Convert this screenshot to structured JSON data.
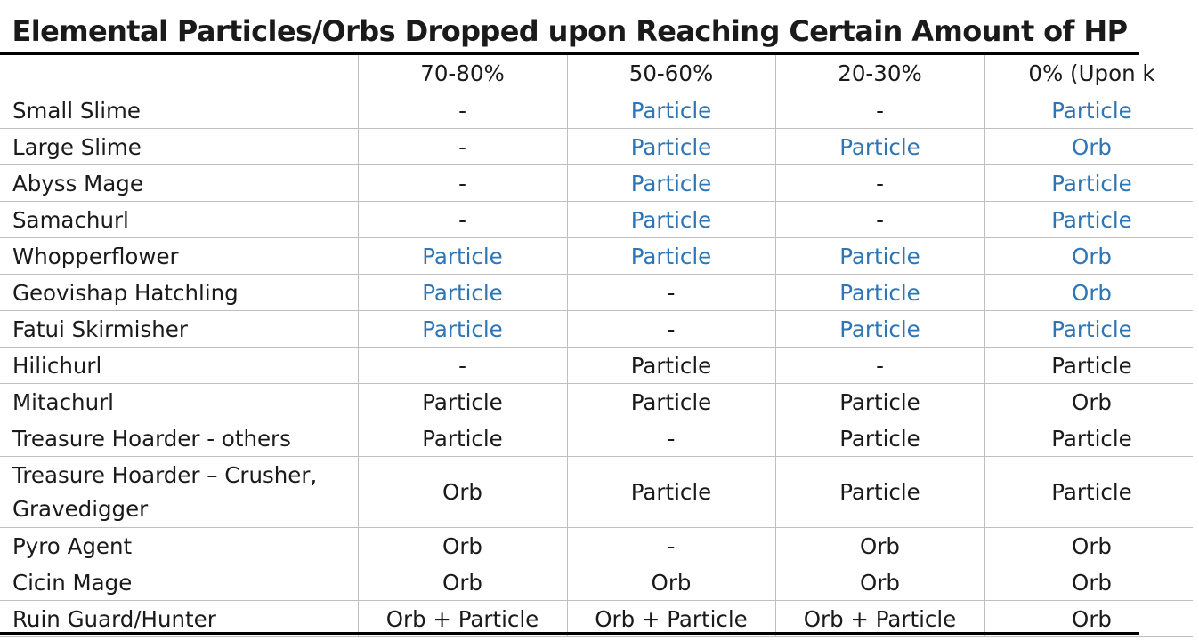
{
  "title": "Elemental Particles/Orbs Dropped upon Reaching Certain Amount of HP",
  "columns": [
    "",
    "70-80%",
    "50-60%",
    "20-30%",
    "0% (Upon k"
  ],
  "rows": [
    {
      "name": "Small Slime",
      "cells": [
        "-",
        "Particle",
        "-",
        "Particle"
      ],
      "blue": [
        false,
        true,
        false,
        true
      ]
    },
    {
      "name": "Large Slime",
      "cells": [
        "-",
        "Particle",
        "Particle",
        "Orb"
      ],
      "blue": [
        false,
        true,
        true,
        true
      ]
    },
    {
      "name": "Abyss Mage",
      "cells": [
        "-",
        "Particle",
        "-",
        "Particle"
      ],
      "blue": [
        false,
        true,
        false,
        true
      ]
    },
    {
      "name": "Samachurl",
      "cells": [
        "-",
        "Particle",
        "-",
        "Particle"
      ],
      "blue": [
        false,
        true,
        false,
        true
      ]
    },
    {
      "name": "Whopperflower",
      "cells": [
        "Particle",
        "Particle",
        "Particle",
        "Orb"
      ],
      "blue": [
        true,
        true,
        true,
        true
      ]
    },
    {
      "name": "Geovishap Hatchling",
      "cells": [
        "Particle",
        "-",
        "Particle",
        "Orb"
      ],
      "blue": [
        true,
        false,
        true,
        true
      ]
    },
    {
      "name": "Fatui Skirmisher",
      "cells": [
        "Particle",
        "-",
        "Particle",
        "Particle"
      ],
      "blue": [
        true,
        false,
        true,
        true
      ]
    },
    {
      "name": "Hilichurl",
      "cells": [
        "-",
        "Particle",
        "-",
        "Particle"
      ],
      "blue": [
        false,
        false,
        false,
        false
      ]
    },
    {
      "name": "Mitachurl",
      "cells": [
        "Particle",
        "Particle",
        "Particle",
        "Orb"
      ],
      "blue": [
        false,
        false,
        false,
        false
      ]
    },
    {
      "name": "Treasure Hoarder - others",
      "cells": [
        "Particle",
        "-",
        "Particle",
        "Particle"
      ],
      "blue": [
        false,
        false,
        false,
        false
      ]
    },
    {
      "name": "Treasure Hoarder – Crusher, Gravedigger",
      "cells": [
        "Orb",
        "Particle",
        "Particle",
        "Particle"
      ],
      "blue": [
        false,
        false,
        false,
        false
      ]
    },
    {
      "name": "Pyro Agent",
      "cells": [
        "Orb",
        "-",
        "Orb",
        "Orb"
      ],
      "blue": [
        false,
        false,
        false,
        false
      ]
    },
    {
      "name": "Cicin Mage",
      "cells": [
        "Orb",
        "Orb",
        "Orb",
        "Orb"
      ],
      "blue": [
        false,
        false,
        false,
        false
      ]
    },
    {
      "name": "Ruin Guard/Hunter",
      "cells": [
        "Orb + Particle",
        "Orb + Particle",
        "Orb + Particle",
        "Orb"
      ],
      "blue": [
        false,
        false,
        false,
        false
      ]
    }
  ],
  "colors": {
    "highlight": "#2e75b6",
    "text": "#1a1a1a",
    "grid": "#bfbfbf"
  }
}
